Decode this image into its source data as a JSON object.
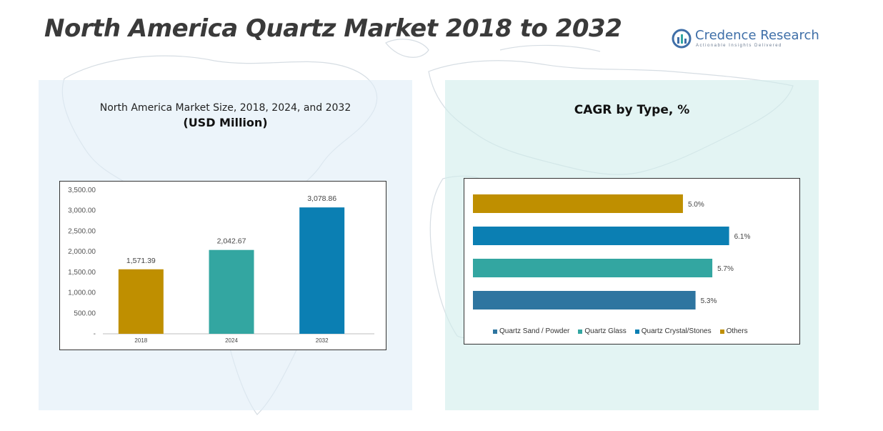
{
  "header": {
    "title": "North America Quartz Market 2018 to 2032"
  },
  "logo": {
    "name": "Credence Research",
    "tagline": "Actionable Insights Delivered"
  },
  "colors": {
    "gold": "#bf8f00",
    "teal": "#33a6a1",
    "blue": "#0b7fb3",
    "navy": "#2e75a0",
    "panel_left": "#e0eef7",
    "panel_right": "#d2eeec"
  },
  "chart_data": [
    {
      "type": "bar",
      "title": "North America Market Size, 2018, 2024, and 2032",
      "subtitle": "(USD Million)",
      "categories": [
        "2018",
        "2024",
        "2032"
      ],
      "values": [
        1571.39,
        2042.67,
        3078.86
      ],
      "value_labels": [
        "1,571.39",
        "2,042.67",
        "3,078.86"
      ],
      "bar_colors": [
        "#bf8f00",
        "#33a6a1",
        "#0b7fb3"
      ],
      "ylim": [
        0,
        3500
      ],
      "yticks": [
        0,
        500,
        1000,
        1500,
        2000,
        2500,
        3000,
        3500
      ],
      "ytick_labels": [
        "-",
        "500.00",
        "1,000.00",
        "1,500.00",
        "2,000.00",
        "2,500.00",
        "3,000.00",
        "3,500.00"
      ],
      "grid": false,
      "legend": "none"
    },
    {
      "type": "bar",
      "orientation": "horizontal",
      "title": "CAGR by Type, %",
      "categories": [
        "Others",
        "Quartz Crystal/Stones",
        "Quartz Glass",
        "Quartz Sand / Powder"
      ],
      "values": [
        5.0,
        6.1,
        5.7,
        5.3
      ],
      "value_labels": [
        "5.0%",
        "6.1%",
        "5.7%",
        "5.3%"
      ],
      "bar_colors": [
        "#bf8f00",
        "#0b7fb3",
        "#33a6a1",
        "#2e75a0"
      ],
      "xlim": [
        0,
        6.6
      ],
      "legend_position": "bottom",
      "legend": [
        {
          "label": "Quartz Sand / Powder",
          "color": "#2e75a0"
        },
        {
          "label": "Quartz Glass",
          "color": "#33a6a1"
        },
        {
          "label": "Quartz Crystal/Stones",
          "color": "#0b7fb3"
        },
        {
          "label": "Others",
          "color": "#bf8f00"
        }
      ],
      "grid": false
    }
  ]
}
